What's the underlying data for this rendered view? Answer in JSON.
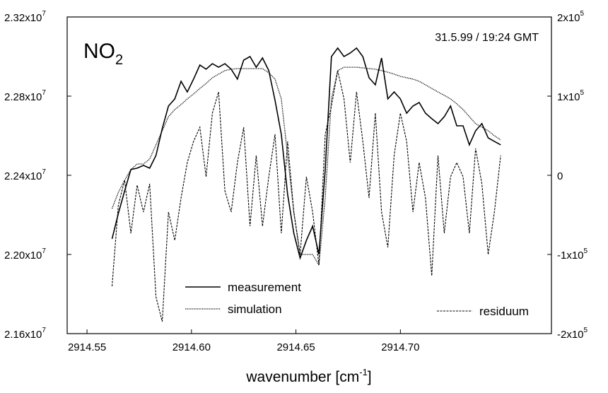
{
  "chart_data": {
    "type": "line",
    "title": {
      "text": "NO",
      "sub": "2"
    },
    "annotation": "31.5.99 / 19:24 GMT",
    "x_label": {
      "text": "wavenumber [cm",
      "sup": "-1",
      "suffix": "]"
    },
    "xlim": [
      2914.5405,
      2914.7723
    ],
    "xticks": [
      2914.55,
      {
        "value": 2914.6,
        "label": "2914.60"
      },
      2914.65,
      {
        "value": 2914.7,
        "label": "2914.70"
      }
    ],
    "ylim": [
      21600000,
      23200000
    ],
    "yticks": [
      {
        "value": 21600000,
        "label": "2.16x10",
        "sup": "7"
      },
      {
        "value": 22000000,
        "label": "2.20x10",
        "sup": "7"
      },
      {
        "value": 22400000,
        "label": "2.24x10",
        "sup": "7"
      },
      {
        "value": 22800000,
        "label": "2.28x10",
        "sup": "7"
      },
      {
        "value": 23200000,
        "label": "2.32x10",
        "sup": "7"
      }
    ],
    "y2lim": [
      -200000,
      200000
    ],
    "y2ticks": [
      {
        "value": -200000,
        "label": "-2x10",
        "sup": "5"
      },
      {
        "value": -100000,
        "label": "-1x10",
        "sup": "5"
      },
      0,
      {
        "value": 100000,
        "label": "1x10",
        "sup": "5"
      },
      {
        "value": 200000,
        "label": "2x10",
        "sup": "5"
      }
    ],
    "x": [
      2914.562,
      2914.565,
      2914.568,
      2914.571,
      2914.574,
      2914.577,
      2914.58,
      2914.583,
      2914.586,
      2914.589,
      2914.592,
      2914.595,
      2914.598,
      2914.601,
      2914.604,
      2914.607,
      2914.61,
      2914.613,
      2914.616,
      2914.619,
      2914.622,
      2914.625,
      2914.628,
      2914.631,
      2914.634,
      2914.637,
      2914.64,
      2914.643,
      2914.646,
      2914.649,
      2914.652,
      2914.655,
      2914.658,
      2914.661,
      2914.664,
      2914.667,
      2914.67,
      2914.673,
      2914.676,
      2914.679,
      2914.682,
      2914.685,
      2914.688,
      2914.691,
      2914.694,
      2914.697,
      2914.7,
      2914.703,
      2914.706,
      2914.709,
      2914.712,
      2914.715,
      2914.718,
      2914.721,
      2914.724,
      2914.727,
      2914.73,
      2914.733,
      2914.736,
      2914.739,
      2914.742,
      2914.745,
      2914.748
    ],
    "series": [
      {
        "name": "measurement",
        "color": "#000000",
        "dash": "solid",
        "values": [
          22079000,
          22207000,
          22321000,
          22429000,
          22436000,
          22450000,
          22436000,
          22500000,
          22636000,
          22750000,
          22786000,
          22875000,
          22821000,
          22886000,
          22957000,
          22936000,
          22964000,
          22946000,
          22964000,
          22936000,
          22886000,
          22982000,
          23000000,
          22946000,
          22993000,
          22929000,
          22779000,
          22607000,
          22304000,
          22107000,
          21982000,
          22071000,
          22143000,
          22000000,
          22429000,
          23000000,
          23043000,
          23000000,
          23018000,
          23043000,
          23000000,
          22893000,
          22857000,
          22993000,
          22786000,
          22821000,
          22786000,
          22714000,
          22750000,
          22768000,
          22714000,
          22686000,
          22661000,
          22696000,
          22750000,
          22650000,
          22650000,
          22554000,
          22625000,
          22661000,
          22589000,
          22571000,
          22554000
        ]
      },
      {
        "name": "simulation",
        "color": "#000000",
        "dash": "dotted",
        "values": [
          22232000,
          22314000,
          22375000,
          22429000,
          22457000,
          22457000,
          22482000,
          22554000,
          22625000,
          22696000,
          22732000,
          22757000,
          22786000,
          22811000,
          22839000,
          22864000,
          22893000,
          22911000,
          22929000,
          22936000,
          22939000,
          22939000,
          22939000,
          22939000,
          22939000,
          22918000,
          22886000,
          22786000,
          22500000,
          22214000,
          22000000,
          22000000,
          22000000,
          21946000,
          22286000,
          22786000,
          22929000,
          22946000,
          22946000,
          22946000,
          22943000,
          22939000,
          22936000,
          22929000,
          22921000,
          22911000,
          22900000,
          22893000,
          22886000,
          22875000,
          22857000,
          22839000,
          22821000,
          22804000,
          22786000,
          22761000,
          22732000,
          22696000,
          22661000,
          22643000,
          22625000,
          22600000,
          22579000
        ]
      },
      {
        "name": "residuum",
        "color": "#000000",
        "dash": "dashed",
        "axis": "y2",
        "values": [
          -140200,
          -37500,
          -6200,
          -73200,
          -12500,
          -46400,
          -10700,
          -153600,
          -184800,
          -46400,
          -82100,
          -28600,
          16100,
          42900,
          60700,
          -1800,
          78600,
          105400,
          -19600,
          -46400,
          16100,
          60700,
          -64300,
          25000,
          -64300,
          -1800,
          51800,
          -73200,
          42900,
          -46400,
          -100000,
          -1800,
          -46400,
          -113400,
          51800,
          87500,
          132100,
          96400,
          16100,
          105400,
          42900,
          -28600,
          78600,
          -46400,
          -91100,
          25000,
          78600,
          42900,
          -46400,
          16100,
          -28600,
          -126800,
          25000,
          -73200,
          -1800,
          16100,
          -1800,
          -73200,
          33900,
          -10700,
          -100000,
          -46400,
          25000
        ]
      }
    ]
  }
}
